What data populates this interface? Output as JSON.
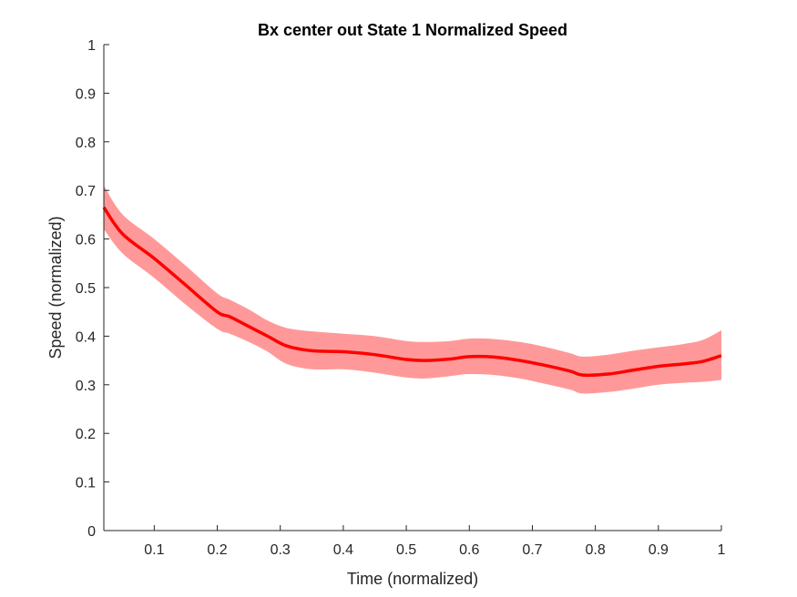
{
  "chart_data": {
    "type": "line",
    "title": "Bx  center out State 1 Normalized Speed",
    "xlabel": "Time (normalized)",
    "ylabel": "Speed (normalized)",
    "xlim": [
      0.02,
      1.0
    ],
    "ylim": [
      0,
      1
    ],
    "x_ticks": [
      0.1,
      0.2,
      0.3,
      0.4,
      0.5,
      0.6,
      0.7,
      0.8,
      0.9,
      1.0
    ],
    "x_tick_labels": [
      "0.1",
      "0.2",
      "0.3",
      "0.4",
      "0.5",
      "0.6",
      "0.7",
      "0.8",
      "0.9",
      "1"
    ],
    "y_ticks": [
      0,
      0.1,
      0.2,
      0.3,
      0.4,
      0.5,
      0.6,
      0.7,
      0.8,
      0.9,
      1.0
    ],
    "y_tick_labels": [
      "0",
      "0.1",
      "0.2",
      "0.3",
      "0.4",
      "0.5",
      "0.6",
      "0.7",
      "0.8",
      "0.9",
      "1"
    ],
    "grid": false,
    "series": [
      {
        "line_color": "#ff0000",
        "band_color": "#ff9999",
        "x": [
          0.02,
          0.05,
          0.1,
          0.15,
          0.2,
          0.22,
          0.25,
          0.28,
          0.31,
          0.35,
          0.4,
          0.45,
          0.5,
          0.53,
          0.57,
          0.6,
          0.64,
          0.68,
          0.72,
          0.76,
          0.78,
          0.82,
          0.86,
          0.9,
          0.94,
          0.97,
          1.0
        ],
        "y": [
          0.665,
          0.61,
          0.56,
          0.505,
          0.45,
          0.44,
          0.42,
          0.4,
          0.38,
          0.37,
          0.368,
          0.362,
          0.352,
          0.35,
          0.353,
          0.358,
          0.357,
          0.35,
          0.34,
          0.328,
          0.32,
          0.322,
          0.33,
          0.338,
          0.343,
          0.348,
          0.36
        ],
        "lower": [
          0.62,
          0.57,
          0.52,
          0.465,
          0.415,
          0.405,
          0.388,
          0.368,
          0.343,
          0.332,
          0.332,
          0.325,
          0.315,
          0.313,
          0.318,
          0.322,
          0.32,
          0.313,
          0.302,
          0.29,
          0.282,
          0.285,
          0.292,
          0.3,
          0.304,
          0.306,
          0.31
        ]
      }
    ],
    "upper_band_values": [
      0.71,
      0.65,
      0.6,
      0.545,
      0.488,
      0.475,
      0.455,
      0.432,
      0.417,
      0.41,
      0.405,
      0.4,
      0.39,
      0.388,
      0.39,
      0.395,
      0.394,
      0.388,
      0.378,
      0.365,
      0.358,
      0.362,
      0.37,
      0.377,
      0.384,
      0.392,
      0.412
    ]
  }
}
